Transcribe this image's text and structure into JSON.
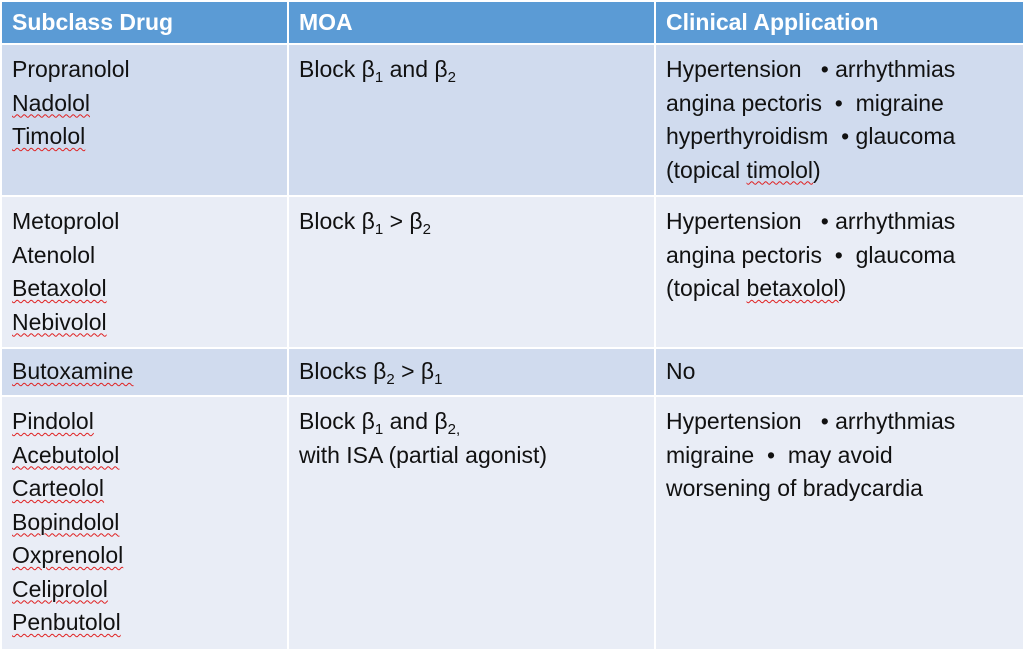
{
  "headers": [
    "Subclass Drug",
    "MOA",
    "Clinical Application"
  ],
  "rows": [
    {
      "drugs": [
        {
          "name": "Propranolol",
          "flagged": false
        },
        {
          "name": "Nadolol",
          "flagged": true
        },
        {
          "name": "Timolol",
          "flagged": true
        }
      ],
      "moa": [
        {
          "pre": "Block β",
          "s1": "1",
          "mid": " and β",
          "s2": "2",
          "post": ""
        }
      ],
      "clinical": [
        "Hypertension   • arrhythmias",
        "angina pectoris  •  migraine",
        "hyperthyroidism  • glaucoma",
        "(topical timolol)"
      ]
    },
    {
      "drugs": [
        {
          "name": "Metoprolol",
          "flagged": false
        },
        {
          "name": "Atenolol",
          "flagged": false
        },
        {
          "name": "Betaxolol",
          "flagged": true
        },
        {
          "name": "Nebivolol",
          "flagged": true
        }
      ],
      "moa": [
        {
          "pre": "Block β",
          "s1": "1",
          "mid": " > β",
          "s2": "2",
          "post": ""
        }
      ],
      "clinical": [
        "Hypertension   • arrhythmias",
        "angina pectoris  •  glaucoma",
        "(topical betaxolol)"
      ]
    },
    {
      "drugs": [
        {
          "name": "Butoxamine",
          "flagged": true
        }
      ],
      "moa": [
        {
          "pre": "Blocks β",
          "s1": "2",
          "mid": " > β",
          "s2": "1",
          "post": ""
        }
      ],
      "clinical": [
        "No"
      ]
    },
    {
      "drugs": [
        {
          "name": "Pindolol",
          "flagged": true
        },
        {
          "name": "Acebutolol",
          "flagged": true
        },
        {
          "name": "Carteolol",
          "flagged": true
        },
        {
          "name": "Bopindolol",
          "flagged": true
        },
        {
          "name": "Oxprenolol",
          "flagged": true
        },
        {
          "name": "Celiprolol",
          "flagged": true
        },
        {
          "name": "Penbutolol",
          "flagged": true
        }
      ],
      "moa": [
        {
          "pre": "Block β",
          "s1": "1",
          "mid": " and β",
          "s2": "2,",
          "post": ""
        },
        {
          "pre": "with ISA (partial agonist)",
          "s1": "",
          "mid": "",
          "s2": "",
          "post": ""
        }
      ],
      "clinical": [
        "Hypertension   • arrhythmias",
        "migraine  •  may avoid",
        "worsening of bradycardia"
      ]
    }
  ],
  "colors": {
    "header_bg": "#5b9bd5",
    "row_odd_bg": "#d0dbee",
    "row_even_bg": "#e9edf6",
    "spellcheck_underline": "#e02020"
  }
}
